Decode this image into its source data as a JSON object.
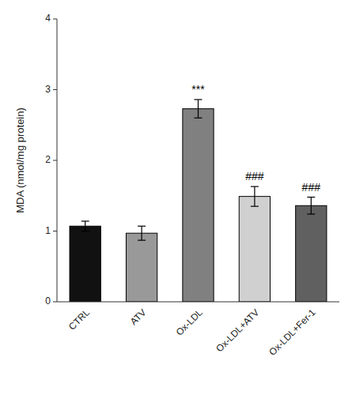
{
  "chart_data": {
    "type": "bar",
    "categories": [
      "CTRL",
      "ATV",
      "Ox-LDL",
      "Ox-LDL+ATV",
      "Ox-LDL+Fer-1"
    ],
    "values": [
      1.07,
      0.97,
      2.73,
      1.49,
      1.36
    ],
    "errors": [
      0.07,
      0.1,
      0.13,
      0.14,
      0.12
    ],
    "colors": [
      "#111111",
      "#999999",
      "#808080",
      "#d0d0d0",
      "#606060"
    ],
    "ylabel": "MDA (nmol/mg protein)",
    "ylim": [
      0,
      4
    ],
    "yticks": [
      0,
      1,
      2,
      3,
      4
    ],
    "annotations": [
      {
        "category": "Ox-LDL",
        "text": "***"
      },
      {
        "category": "Ox-LDL+ATV",
        "text": "###"
      },
      {
        "category": "Ox-LDL+Fer-1",
        "text": "###"
      }
    ],
    "grid": false
  }
}
